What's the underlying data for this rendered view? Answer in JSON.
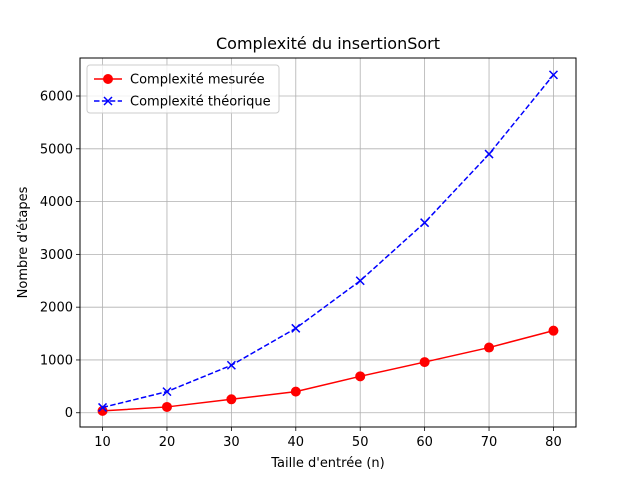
{
  "chart_data": {
    "type": "line",
    "title": "Complexité du insertionSort",
    "xlabel": "Taille d'entrée (n)",
    "ylabel": "Nombre d'étapes",
    "x": [
      10,
      20,
      30,
      40,
      50,
      60,
      70,
      80
    ],
    "xlim": [
      6.5,
      83.5
    ],
    "ylim": [
      -270,
      6720
    ],
    "xticks": [
      10,
      20,
      30,
      40,
      50,
      60,
      70,
      80
    ],
    "yticks": [
      0,
      1000,
      2000,
      3000,
      4000,
      5000,
      6000
    ],
    "grid": true,
    "legend_position": "upper-left",
    "series": [
      {
        "name": "Complexité mesurée",
        "color": "#ff0000",
        "marker": "circle",
        "linestyle": "solid",
        "values": [
          35,
          110,
          255,
          400,
          690,
          960,
          1235,
          1555
        ]
      },
      {
        "name": "Complexité théorique",
        "color": "#0000ff",
        "marker": "x",
        "linestyle": "dashed",
        "values": [
          100,
          400,
          900,
          1600,
          2500,
          3600,
          4900,
          6400
        ]
      }
    ]
  }
}
